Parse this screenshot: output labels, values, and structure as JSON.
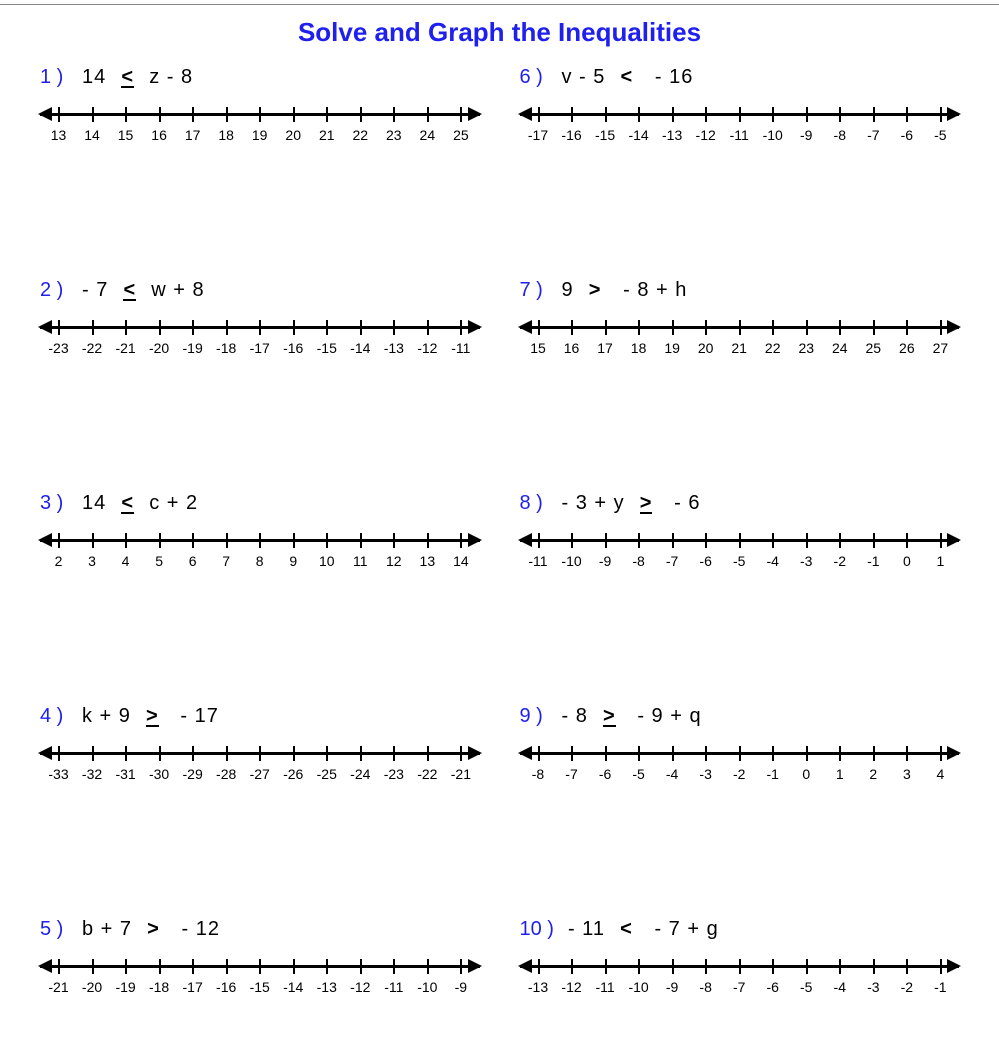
{
  "title": "Solve and Graph the Inequalities",
  "title_color": "#2020ee",
  "number_color": "#2020ee",
  "axis_color": "#000000",
  "background_color": "#ffffff",
  "tick_count": 13,
  "problems": [
    {
      "n": "1 )",
      "lhs": "14",
      "op": "le",
      "sym": "<",
      "rhs": "z - 8",
      "ticks": [
        "13",
        "14",
        "15",
        "16",
        "17",
        "18",
        "19",
        "20",
        "21",
        "22",
        "23",
        "24",
        "25"
      ]
    },
    {
      "n": "6 )",
      "lhs": "v - 5",
      "op": "lt",
      "sym": "<",
      "rhs": " - 16",
      "ticks": [
        "-17",
        "-16",
        "-15",
        "-14",
        "-13",
        "-12",
        "-11",
        "-10",
        "-9",
        "-8",
        "-7",
        "-6",
        "-5"
      ]
    },
    {
      "n": "2 )",
      "lhs": "- 7",
      "op": "le",
      "sym": "<",
      "rhs": "w + 8",
      "ticks": [
        "-23",
        "-22",
        "-21",
        "-20",
        "-19",
        "-18",
        "-17",
        "-16",
        "-15",
        "-14",
        "-13",
        "-12",
        "-11"
      ]
    },
    {
      "n": "7 )",
      "lhs": "9",
      "op": "gt",
      "sym": ">",
      "rhs": " - 8 + h",
      "ticks": [
        "15",
        "16",
        "17",
        "18",
        "19",
        "20",
        "21",
        "22",
        "23",
        "24",
        "25",
        "26",
        "27"
      ]
    },
    {
      "n": "3 )",
      "lhs": "14",
      "op": "le",
      "sym": "<",
      "rhs": "c + 2",
      "ticks": [
        "2",
        "3",
        "4",
        "5",
        "6",
        "7",
        "8",
        "9",
        "10",
        "11",
        "12",
        "13",
        "14"
      ]
    },
    {
      "n": "8 )",
      "lhs": "- 3 + y",
      "op": "ge",
      "sym": ">",
      "rhs": " - 6",
      "ticks": [
        "-11",
        "-10",
        "-9",
        "-8",
        "-7",
        "-6",
        "-5",
        "-4",
        "-3",
        "-2",
        "-1",
        "0",
        "1"
      ]
    },
    {
      "n": "4 )",
      "lhs": "k + 9",
      "op": "ge",
      "sym": ">",
      "rhs": " - 17",
      "ticks": [
        "-33",
        "-32",
        "-31",
        "-30",
        "-29",
        "-28",
        "-27",
        "-26",
        "-25",
        "-24",
        "-23",
        "-22",
        "-21"
      ]
    },
    {
      "n": "9 )",
      "lhs": "- 8",
      "op": "ge",
      "sym": ">",
      "rhs": " - 9 + q",
      "ticks": [
        "-8",
        "-7",
        "-6",
        "-5",
        "-4",
        "-3",
        "-2",
        "-1",
        "0",
        "1",
        "2",
        "3",
        "4"
      ]
    },
    {
      "n": "5 )",
      "lhs": "b + 7",
      "op": "gt",
      "sym": ">",
      "rhs": " - 12",
      "ticks": [
        "-21",
        "-20",
        "-19",
        "-18",
        "-17",
        "-16",
        "-15",
        "-14",
        "-13",
        "-12",
        "-11",
        "-10",
        "-9"
      ]
    },
    {
      "n": "10 )",
      "lhs": "- 11",
      "op": "lt",
      "sym": "<",
      "rhs": " - 7 + g",
      "ticks": [
        "-13",
        "-12",
        "-11",
        "-10",
        "-9",
        "-8",
        "-7",
        "-6",
        "-5",
        "-4",
        "-3",
        "-2",
        "-1"
      ]
    }
  ]
}
